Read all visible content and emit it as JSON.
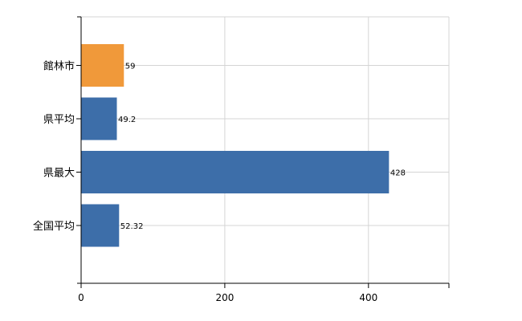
{
  "chart_data": {
    "type": "bar",
    "orientation": "horizontal",
    "categories": [
      "館林市",
      "県平均",
      "県最大",
      "全国平均"
    ],
    "values": [
      59,
      49.2,
      428,
      52.32
    ],
    "value_labels": [
      "59",
      "49.2",
      "428",
      "52.32"
    ],
    "bar_colors": [
      "#f0993a",
      "#3d6ea9",
      "#3d6ea9",
      "#3d6ea9"
    ],
    "xlim": [
      0,
      512
    ],
    "x_ticks": [
      0,
      200,
      400
    ],
    "x_tick_labels": [
      "0",
      "200",
      "400"
    ],
    "grid": true,
    "title": "",
    "xlabel": "",
    "ylabel": ""
  }
}
